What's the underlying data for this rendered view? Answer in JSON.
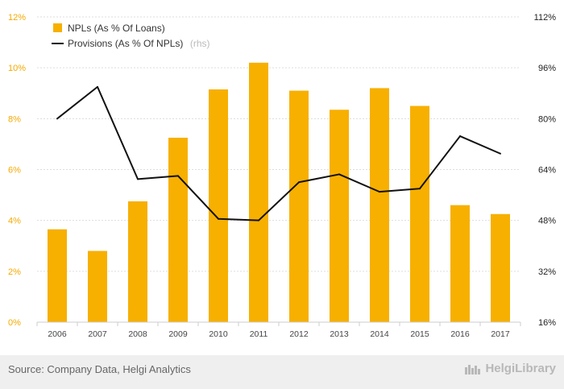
{
  "chart_data": {
    "type": "bar",
    "categories": [
      "2006",
      "2007",
      "2008",
      "2009",
      "2010",
      "2011",
      "2012",
      "2013",
      "2014",
      "2015",
      "2016",
      "2017"
    ],
    "series": [
      {
        "name": "NPLs (As % Of Loans)",
        "type": "bar",
        "axis": "left",
        "color": "#f7b000",
        "values": [
          3.65,
          2.8,
          4.75,
          7.25,
          9.15,
          10.2,
          9.1,
          8.35,
          9.2,
          8.5,
          4.6,
          4.25
        ]
      },
      {
        "name": "Provisions (As % Of NPLs)",
        "type": "line",
        "axis": "right",
        "color": "#111111",
        "values": [
          80,
          90,
          61,
          62,
          48.5,
          48,
          60,
          62.5,
          57,
          58,
          74.5,
          69
        ]
      }
    ],
    "legend_note": "(rhs)",
    "left_axis": {
      "min": 0,
      "max": 12,
      "ticks": [
        "0%",
        "2%",
        "4%",
        "6%",
        "8%",
        "10%",
        "12%"
      ]
    },
    "right_axis": {
      "min": 16,
      "max": 112,
      "ticks": [
        "16%",
        "32%",
        "48%",
        "64%",
        "80%",
        "96%",
        "112%"
      ]
    },
    "gridlines": "horizontal dashed"
  },
  "footer": {
    "source": "Source: Company Data, Helgi Analytics",
    "brand": "HelgiLibrary"
  }
}
